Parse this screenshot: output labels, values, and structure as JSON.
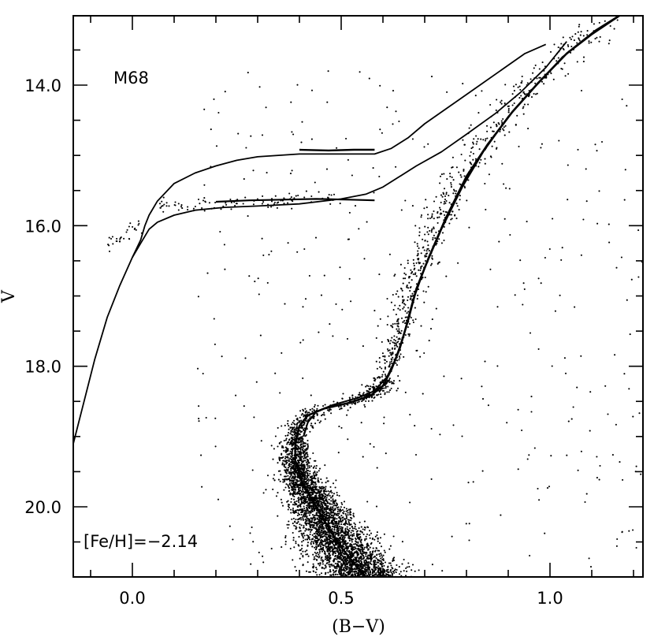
{
  "chart_data": {
    "type": "scatter",
    "title": "",
    "xlabel": "(B−V)",
    "ylabel": "V",
    "xlim": [
      -0.15,
      1.23
    ],
    "ylim": [
      21.0,
      13.0
    ],
    "y_inverted": true,
    "grid": false,
    "legend": "none",
    "xticks": [
      0.0,
      0.5,
      1.0
    ],
    "xtick_labels": [
      "0.0",
      "0.5",
      "1.0"
    ],
    "yticks": [
      14.0,
      16.0,
      18.0,
      20.0
    ],
    "ytick_labels": [
      "14.0",
      "16.0",
      "18.0",
      "20.0"
    ],
    "annotations": [
      {
        "text": "M68",
        "x": 0.05,
        "y": 13.95
      },
      {
        "text": "[Fe/H]=−2.14",
        "x": -0.12,
        "y": 20.5
      }
    ],
    "color": "#000000",
    "series": [
      {
        "kind": "line",
        "points": [
          [
            -0.15,
            19.3
          ],
          [
            -0.12,
            18.6
          ],
          [
            -0.09,
            17.9
          ],
          [
            -0.06,
            17.3
          ],
          [
            -0.03,
            16.85
          ],
          [
            0.0,
            16.45
          ],
          [
            0.02,
            16.25
          ],
          [
            0.04,
            16.05
          ],
          [
            0.06,
            15.95
          ],
          [
            0.1,
            15.85
          ],
          [
            0.15,
            15.78
          ],
          [
            0.22,
            15.74
          ],
          [
            0.3,
            15.72
          ],
          [
            0.4,
            15.69
          ],
          [
            0.5,
            15.62
          ],
          [
            0.56,
            15.55
          ],
          [
            0.6,
            15.45
          ],
          [
            0.64,
            15.3
          ],
          [
            0.68,
            15.15
          ],
          [
            0.74,
            14.95
          ],
          [
            0.8,
            14.7
          ],
          [
            0.87,
            14.4
          ],
          [
            0.93,
            14.1
          ],
          [
            0.99,
            13.75
          ],
          [
            1.04,
            13.38
          ]
        ]
      },
      {
        "kind": "line",
        "points": [
          [
            0.0,
            16.45
          ],
          [
            0.02,
            16.2
          ],
          [
            0.03,
            16.0
          ],
          [
            0.04,
            15.85
          ],
          [
            0.06,
            15.65
          ],
          [
            0.1,
            15.4
          ],
          [
            0.15,
            15.25
          ],
          [
            0.2,
            15.15
          ],
          [
            0.25,
            15.07
          ],
          [
            0.3,
            15.02
          ],
          [
            0.4,
            14.98
          ],
          [
            0.5,
            14.98
          ],
          [
            0.58,
            14.98
          ],
          [
            0.62,
            14.9
          ],
          [
            0.66,
            14.75
          ],
          [
            0.7,
            14.55
          ],
          [
            0.76,
            14.3
          ],
          [
            0.82,
            14.05
          ],
          [
            0.88,
            13.8
          ],
          [
            0.94,
            13.55
          ],
          [
            0.99,
            13.42
          ]
        ]
      },
      {
        "kind": "line",
        "points": [
          [
            0.2,
            15.66
          ],
          [
            0.28,
            15.64
          ],
          [
            0.36,
            15.63
          ],
          [
            0.44,
            15.62
          ],
          [
            0.52,
            15.63
          ],
          [
            0.58,
            15.64
          ]
        ]
      },
      {
        "kind": "line",
        "points": [
          [
            0.4,
            14.92
          ],
          [
            0.47,
            14.93
          ],
          [
            0.53,
            14.92
          ],
          [
            0.58,
            14.92
          ]
        ]
      },
      {
        "kind": "line",
        "points": [
          [
            0.41,
            19.0
          ],
          [
            0.42,
            18.8
          ],
          [
            0.44,
            18.65
          ],
          [
            0.48,
            18.55
          ],
          [
            0.54,
            18.45
          ],
          [
            0.58,
            18.35
          ],
          [
            0.61,
            18.15
          ],
          [
            0.63,
            17.9
          ],
          [
            0.65,
            17.55
          ],
          [
            0.67,
            17.1
          ],
          [
            0.7,
            16.6
          ],
          [
            0.74,
            16.05
          ],
          [
            0.79,
            15.45
          ],
          [
            0.84,
            14.95
          ],
          [
            0.9,
            14.45
          ],
          [
            0.96,
            14.05
          ],
          [
            1.03,
            13.6
          ],
          [
            1.1,
            13.28
          ],
          [
            1.17,
            13.0
          ]
        ]
      },
      {
        "kind": "line",
        "points": [
          [
            0.56,
            21.0
          ],
          [
            0.53,
            20.8
          ],
          [
            0.49,
            20.5
          ],
          [
            0.45,
            20.1
          ],
          [
            0.41,
            19.7
          ],
          [
            0.39,
            19.35
          ],
          [
            0.39,
            19.1
          ],
          [
            0.4,
            18.85
          ],
          [
            0.42,
            18.7
          ],
          [
            0.46,
            18.6
          ],
          [
            0.52,
            18.52
          ],
          [
            0.57,
            18.42
          ],
          [
            0.6,
            18.28
          ],
          [
            0.62,
            18.05
          ],
          [
            0.64,
            17.75
          ],
          [
            0.66,
            17.35
          ],
          [
            0.68,
            16.9
          ],
          [
            0.71,
            16.45
          ],
          [
            0.75,
            15.9
          ],
          [
            0.8,
            15.3
          ],
          [
            0.85,
            14.85
          ],
          [
            0.91,
            14.38
          ],
          [
            0.97,
            13.98
          ],
          [
            1.04,
            13.55
          ],
          [
            1.11,
            13.22
          ],
          [
            1.18,
            12.96
          ]
        ]
      },
      {
        "kind": "points",
        "region": "main-sequence",
        "count": 3600,
        "description_values": {
          "v_range": [
            18.8,
            21.0
          ],
          "turnoff_color": 0.39
        }
      },
      {
        "kind": "points",
        "region": "subgiant-branch",
        "count": 350
      },
      {
        "kind": "points",
        "region": "red-giant-branch",
        "count": 650
      },
      {
        "kind": "points",
        "region": "horizontal-branch",
        "count": 130
      },
      {
        "kind": "points",
        "region": "field",
        "count": 380
      }
    ]
  }
}
